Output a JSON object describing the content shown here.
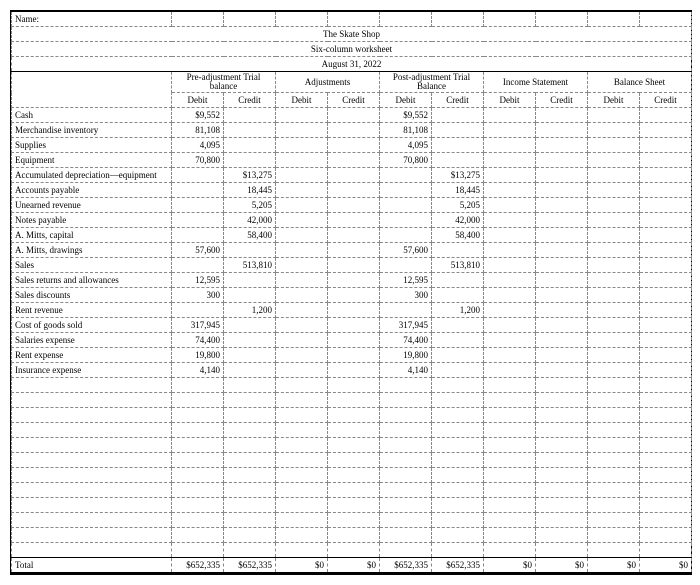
{
  "header": {
    "name_label": "Name:",
    "company": "The Skate Shop",
    "title": "Six-column worksheet",
    "date": "August 31, 2022"
  },
  "groups": {
    "pre": "Pre-adjustment Trial balance",
    "adj": "Adjustments",
    "post": "Post-adjustment Trial Balance",
    "inc": "Income Statement",
    "bal": "Balance Sheet"
  },
  "sub": {
    "debit": "Debit",
    "credit": "Credit"
  },
  "rows": [
    {
      "acct": "Cash",
      "pd": "$9,552",
      "pc": "",
      "ad": "",
      "ac": "",
      "pod": "$9,552",
      "poc": "",
      "id": "",
      "ic": "",
      "bd": "",
      "bc": ""
    },
    {
      "acct": "Merchandise inventory",
      "pd": "81,108",
      "pc": "",
      "ad": "",
      "ac": "",
      "pod": "81,108",
      "poc": "",
      "id": "",
      "ic": "",
      "bd": "",
      "bc": ""
    },
    {
      "acct": "Supplies",
      "pd": "4,095",
      "pc": "",
      "ad": "",
      "ac": "",
      "pod": "4,095",
      "poc": "",
      "id": "",
      "ic": "",
      "bd": "",
      "bc": ""
    },
    {
      "acct": "Equipment",
      "pd": "70,800",
      "pc": "",
      "ad": "",
      "ac": "",
      "pod": "70,800",
      "poc": "",
      "id": "",
      "ic": "",
      "bd": "",
      "bc": ""
    },
    {
      "acct": "Accumulated depreciation—equipment",
      "pd": "",
      "pc": "$13,275",
      "ad": "",
      "ac": "",
      "pod": "",
      "poc": "$13,275",
      "id": "",
      "ic": "",
      "bd": "",
      "bc": ""
    },
    {
      "acct": "Accounts payable",
      "pd": "",
      "pc": "18,445",
      "ad": "",
      "ac": "",
      "pod": "",
      "poc": "18,445",
      "id": "",
      "ic": "",
      "bd": "",
      "bc": ""
    },
    {
      "acct": "Unearned revenue",
      "pd": "",
      "pc": "5,205",
      "ad": "",
      "ac": "",
      "pod": "",
      "poc": "5,205",
      "id": "",
      "ic": "",
      "bd": "",
      "bc": ""
    },
    {
      "acct": "Notes payable",
      "pd": "",
      "pc": "42,000",
      "ad": "",
      "ac": "",
      "pod": "",
      "poc": "42,000",
      "id": "",
      "ic": "",
      "bd": "",
      "bc": ""
    },
    {
      "acct": "A. Mitts, capital",
      "pd": "",
      "pc": "58,400",
      "ad": "",
      "ac": "",
      "pod": "",
      "poc": "58,400",
      "id": "",
      "ic": "",
      "bd": "",
      "bc": ""
    },
    {
      "acct": "A. Mitts, drawings",
      "pd": "57,600",
      "pc": "",
      "ad": "",
      "ac": "",
      "pod": "57,600",
      "poc": "",
      "id": "",
      "ic": "",
      "bd": "",
      "bc": ""
    },
    {
      "acct": "Sales",
      "pd": "",
      "pc": "513,810",
      "ad": "",
      "ac": "",
      "pod": "",
      "poc": "513,810",
      "id": "",
      "ic": "",
      "bd": "",
      "bc": ""
    },
    {
      "acct": "Sales returns and allowances",
      "pd": "12,595",
      "pc": "",
      "ad": "",
      "ac": "",
      "pod": "12,595",
      "poc": "",
      "id": "",
      "ic": "",
      "bd": "",
      "bc": ""
    },
    {
      "acct": "Sales discounts",
      "pd": "300",
      "pc": "",
      "ad": "",
      "ac": "",
      "pod": "300",
      "poc": "",
      "id": "",
      "ic": "",
      "bd": "",
      "bc": ""
    },
    {
      "acct": "Rent revenue",
      "pd": "",
      "pc": "1,200",
      "ad": "",
      "ac": "",
      "pod": "",
      "poc": "1,200",
      "id": "",
      "ic": "",
      "bd": "",
      "bc": ""
    },
    {
      "acct": "Cost of goods sold",
      "pd": "317,945",
      "pc": "",
      "ad": "",
      "ac": "",
      "pod": "317,945",
      "poc": "",
      "id": "",
      "ic": "",
      "bd": "",
      "bc": ""
    },
    {
      "acct": "Salaries expense",
      "pd": "74,400",
      "pc": "",
      "ad": "",
      "ac": "",
      "pod": "74,400",
      "poc": "",
      "id": "",
      "ic": "",
      "bd": "",
      "bc": ""
    },
    {
      "acct": "Rent expense",
      "pd": "19,800",
      "pc": "",
      "ad": "",
      "ac": "",
      "pod": "19,800",
      "poc": "",
      "id": "",
      "ic": "",
      "bd": "",
      "bc": ""
    },
    {
      "acct": "Insurance expense",
      "pd": "4,140",
      "pc": "",
      "ad": "",
      "ac": "",
      "pod": "4,140",
      "poc": "",
      "id": "",
      "ic": "",
      "bd": "",
      "bc": ""
    }
  ],
  "blank_rows": 12,
  "total": {
    "label": "Total",
    "pd": "$652,335",
    "pc": "$652,335",
    "ad": "$0",
    "ac": "$0",
    "pod": "$652,335",
    "poc": "$652,335",
    "id": "$0",
    "ic": "$0",
    "bd": "$0",
    "bc": "$0"
  }
}
